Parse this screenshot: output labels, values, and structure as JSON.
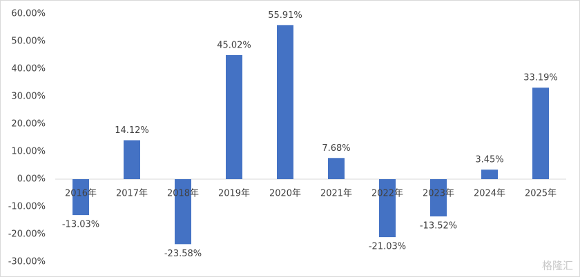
{
  "chart_data": {
    "type": "bar",
    "categories": [
      "2016年",
      "2017年",
      "2018年",
      "2019年",
      "2020年",
      "2021年",
      "2022年",
      "2023年",
      "2024年",
      "2025年"
    ],
    "values": [
      -13.03,
      14.12,
      -23.58,
      45.02,
      55.91,
      7.68,
      -21.03,
      -13.52,
      3.45,
      33.19
    ],
    "value_labels": [
      "-13.03%",
      "14.12%",
      "-23.58%",
      "45.02%",
      "55.91%",
      "7.68%",
      "-21.03%",
      "-13.52%",
      "3.45%",
      "33.19%"
    ],
    "color": "#4472c4",
    "ylim": [
      -30,
      60
    ],
    "yticks": [
      {
        "value": -30,
        "label": "-30.00%"
      },
      {
        "value": -20,
        "label": "-20.00%"
      },
      {
        "value": -10,
        "label": "-10.00%"
      },
      {
        "value": 0,
        "label": "0.00%"
      },
      {
        "value": 10,
        "label": "10.00%"
      },
      {
        "value": 20,
        "label": "20.00%"
      },
      {
        "value": 30,
        "label": "30.00%"
      },
      {
        "value": 40,
        "label": "40.00%"
      },
      {
        "value": 50,
        "label": "50.00%"
      },
      {
        "value": 60,
        "label": "60.00%"
      }
    ],
    "grid": false,
    "watermark": "格隆汇"
  }
}
